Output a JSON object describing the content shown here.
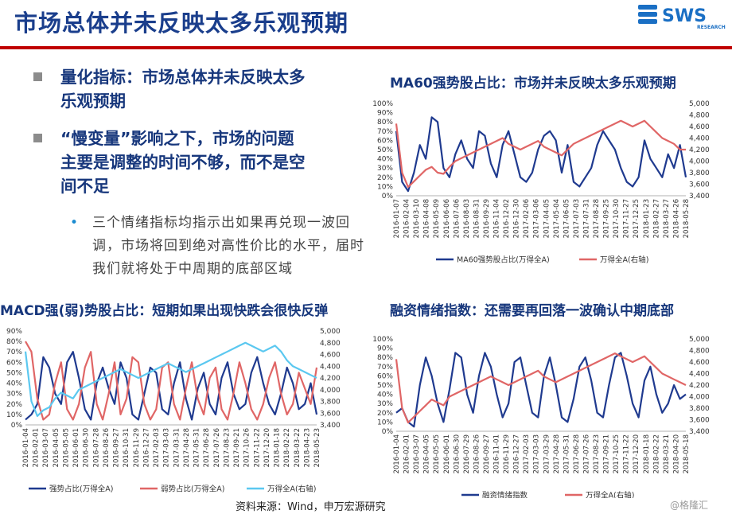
{
  "page": {
    "title": "市场总体并未反映太多乐观预期",
    "logo_text": "SWS",
    "logo_sub": "RESEARCH",
    "bullets": [
      {
        "line1": "量化指标：市场总体并未反映太多",
        "line2": "乐观预期"
      },
      {
        "line1": "“慢变量”影响之下，市场的问题",
        "line2": "主要是调整的时间不够，而不是空",
        "line3": "间不足"
      }
    ],
    "sub_bullet": "三个情绪指标均指示出如果再兑现一波回调，市场将回到绝对高性价比的水平，届时我们就将处于中周期的底部区域",
    "source": "资料来源：Wind，申万宏源研究",
    "watermark": "@格隆汇",
    "colors": {
      "title": "#1a3e8c",
      "navy": "#1f3a8f",
      "red": "#e06666",
      "cyan": "#5bc8f0",
      "accent": "#c00000"
    }
  },
  "chart_data": [
    {
      "type": "line",
      "title": "MA60强势股占比：市场并未反映太多乐观预期",
      "x_labels": [
        "2016-01-07",
        "2016-02-04",
        "2016-03-10",
        "2016-04-08",
        "2016-05-09",
        "2016-06-06",
        "2016-07-06",
        "2016-08-03",
        "2016-08-31",
        "2016-09-29",
        "2016-11-04",
        "2016-12-02",
        "2016-12-30",
        "2017-02-06",
        "2017-03-06",
        "2017-04-05",
        "2017-05-04",
        "2017-06-05",
        "2017-07-03",
        "2017-07-31",
        "2017-08-28",
        "2017-09-25",
        "2017-10-30",
        "2017-11-27",
        "2017-12-25",
        "2018-01-23",
        "2018-02-27",
        "2018-03-27",
        "2018-04-26",
        "2018-05-28"
      ],
      "y_left": {
        "ticks": [
          "100%",
          "90%",
          "80%",
          "70%",
          "60%",
          "50%",
          "40%",
          "30%",
          "20%",
          "10%",
          "0%"
        ],
        "range": [
          0,
          100
        ]
      },
      "y_right": {
        "ticks": [
          "5,000",
          "4,800",
          "4,600",
          "4,400",
          "4,200",
          "4,000",
          "3,800",
          "3,600",
          "3,400"
        ],
        "range": [
          3400,
          5000
        ]
      },
      "series": [
        {
          "name": "MA60强势股占比(万得全A)",
          "axis": "left",
          "color": "#1f3a8f",
          "values": [
            70,
            15,
            5,
            25,
            55,
            40,
            85,
            80,
            30,
            20,
            45,
            60,
            40,
            30,
            70,
            65,
            35,
            20,
            55,
            70,
            45,
            20,
            15,
            25,
            50,
            65,
            70,
            60,
            25,
            55,
            15,
            10,
            20,
            30,
            55,
            70,
            60,
            50,
            30,
            15,
            10,
            20,
            60,
            40,
            30,
            20,
            45,
            30,
            55,
            20
          ]
        },
        {
          "name": "万得全A(右轴)",
          "axis": "right",
          "color": "#e06666",
          "values": [
            4650,
            3800,
            3550,
            3650,
            3750,
            3850,
            3900,
            3800,
            3780,
            3900,
            4000,
            4050,
            4100,
            4150,
            4200,
            4250,
            4300,
            4350,
            4400,
            4300,
            4250,
            4200,
            4250,
            4300,
            4350,
            4250,
            4200,
            4150,
            4100,
            4200,
            4300,
            4350,
            4400,
            4450,
            4500,
            4550,
            4600,
            4650,
            4700,
            4650,
            4600,
            4650,
            4700,
            4600,
            4500,
            4400,
            4350,
            4300,
            4200,
            4200
          ]
        }
      ]
    },
    {
      "type": "line",
      "title": "MACD强(弱)势股占比：短期如果出现快跌会很快反弹",
      "x_labels": [
        "2016-01-04",
        "2016-02-01",
        "2016-03-07",
        "2016-04-05",
        "2016-05-05",
        "2016-06-01",
        "2016-06-30",
        "2016-07-28",
        "2016-08-26",
        "2016-09-27",
        "2016-10-31",
        "2016-11-29",
        "2016-12-27",
        "2017-02-03",
        "2017-03-03",
        "2017-03-31",
        "2017-04-28",
        "2017-05-31",
        "2017-06-28",
        "2017-07-26",
        "2017-08-23",
        "2017-09-21",
        "2017-10-26",
        "2017-11-22",
        "2017-12-20",
        "2018-01-18",
        "2018-02-22",
        "2018-03-22",
        "2018-04-23",
        "2018-05-23"
      ],
      "y_left": {
        "ticks": [
          "90%",
          "80%",
          "70%",
          "60%",
          "50%",
          "40%",
          "30%",
          "20%",
          "10%",
          "0%"
        ],
        "range": [
          0,
          90
        ]
      },
      "y_right": {
        "ticks": [
          "5,000",
          "4,800",
          "4,600",
          "4,400",
          "4,200",
          "4,000",
          "3,800",
          "3,600",
          "3,400"
        ],
        "range": [
          3400,
          5000
        ]
      },
      "series": [
        {
          "name": "强势占比(万得全A)",
          "axis": "left",
          "color": "#1f3a8f",
          "values": [
            5,
            10,
            20,
            65,
            55,
            30,
            20,
            60,
            70,
            45,
            15,
            5,
            40,
            55,
            35,
            20,
            60,
            45,
            10,
            5,
            30,
            55,
            50,
            15,
            10,
            40,
            60,
            25,
            5,
            35,
            50,
            20,
            10,
            45,
            60,
            30,
            15,
            20,
            50,
            65,
            40,
            20,
            10,
            30,
            55,
            40,
            15,
            20,
            40,
            10
          ]
        },
        {
          "name": "弱势占比(万得全A)",
          "axis": "left",
          "color": "#e06666",
          "values": [
            80,
            70,
            25,
            5,
            10,
            40,
            60,
            15,
            5,
            20,
            55,
            70,
            20,
            5,
            30,
            60,
            10,
            25,
            65,
            60,
            20,
            5,
            15,
            55,
            60,
            20,
            5,
            35,
            60,
            25,
            10,
            45,
            55,
            15,
            5,
            30,
            60,
            40,
            15,
            5,
            20,
            45,
            60,
            30,
            10,
            20,
            50,
            35,
            20,
            55
          ]
        },
        {
          "name": "万得全A(右轴)",
          "axis": "right",
          "color": "#5bc8f0",
          "values": [
            4650,
            3800,
            3550,
            3650,
            3700,
            3850,
            3950,
            3900,
            3850,
            4000,
            4050,
            4100,
            4150,
            4200,
            4250,
            4300,
            4350,
            4300,
            4250,
            4200,
            4250,
            4300,
            4350,
            4400,
            4450,
            4400,
            4350,
            4300,
            4350,
            4400,
            4450,
            4500,
            4550,
            4600,
            4650,
            4700,
            4750,
            4800,
            4750,
            4700,
            4650,
            4700,
            4750,
            4650,
            4500,
            4400,
            4350,
            4300,
            4250,
            4200
          ]
        }
      ]
    },
    {
      "type": "line",
      "title": "融资情绪指数：还需要再回落一波确认中期底部",
      "x_labels": [
        "2016-01-04",
        "2016-02-01",
        "2016-03-07",
        "2016-04-05",
        "2016-05-05",
        "2016-06-01",
        "2016-06-30",
        "2016-07-29",
        "2016-08-26",
        "2016-09-27",
        "2016-11-01",
        "2016-11-29",
        "2016-12-27",
        "2017-02-03",
        "2017-03-03",
        "2017-03-29",
        "2017-04-28",
        "2017-05-31",
        "2017-06-28",
        "2017-07-26",
        "2017-08-23",
        "2017-09-21",
        "2017-10-25",
        "2017-11-22",
        "2017-12-20",
        "2018-01-18",
        "2018-02-22",
        "2018-03-21",
        "2018-04-20",
        "2018-05-18"
      ],
      "y_left": {
        "ticks": [
          "100%",
          "90%",
          "80%",
          "70%",
          "60%",
          "50%",
          "40%",
          "30%",
          "20%",
          "10%",
          "0%"
        ],
        "range": [
          0,
          100
        ]
      },
      "y_right": {
        "ticks": [
          "5,000",
          "4,800",
          "4,600",
          "4,400",
          "4,200",
          "4,000",
          "3,800",
          "3,600",
          "3,400"
        ],
        "range": [
          3400,
          5000
        ]
      },
      "series": [
        {
          "name": "融资情绪指数",
          "axis": "left",
          "color": "#1f3a8f",
          "values": [
            20,
            25,
            10,
            5,
            50,
            80,
            60,
            30,
            10,
            45,
            85,
            80,
            40,
            20,
            60,
            85,
            70,
            40,
            15,
            30,
            75,
            80,
            50,
            20,
            15,
            60,
            80,
            50,
            15,
            10,
            35,
            70,
            80,
            55,
            20,
            15,
            50,
            80,
            85,
            60,
            30,
            15,
            55,
            70,
            40,
            20,
            30,
            50,
            35,
            40
          ]
        },
        {
          "name": "万得全A(右轴)",
          "axis": "right",
          "color": "#e06666",
          "values": [
            4650,
            3800,
            3550,
            3650,
            3750,
            3850,
            3950,
            3900,
            3850,
            4000,
            4050,
            4100,
            4150,
            4200,
            4250,
            4300,
            4350,
            4300,
            4250,
            4200,
            4250,
            4300,
            4350,
            4400,
            4450,
            4350,
            4300,
            4250,
            4300,
            4350,
            4400,
            4450,
            4500,
            4550,
            4600,
            4650,
            4700,
            4750,
            4700,
            4650,
            4600,
            4650,
            4700,
            4600,
            4500,
            4400,
            4350,
            4300,
            4250,
            4200
          ]
        }
      ]
    }
  ]
}
